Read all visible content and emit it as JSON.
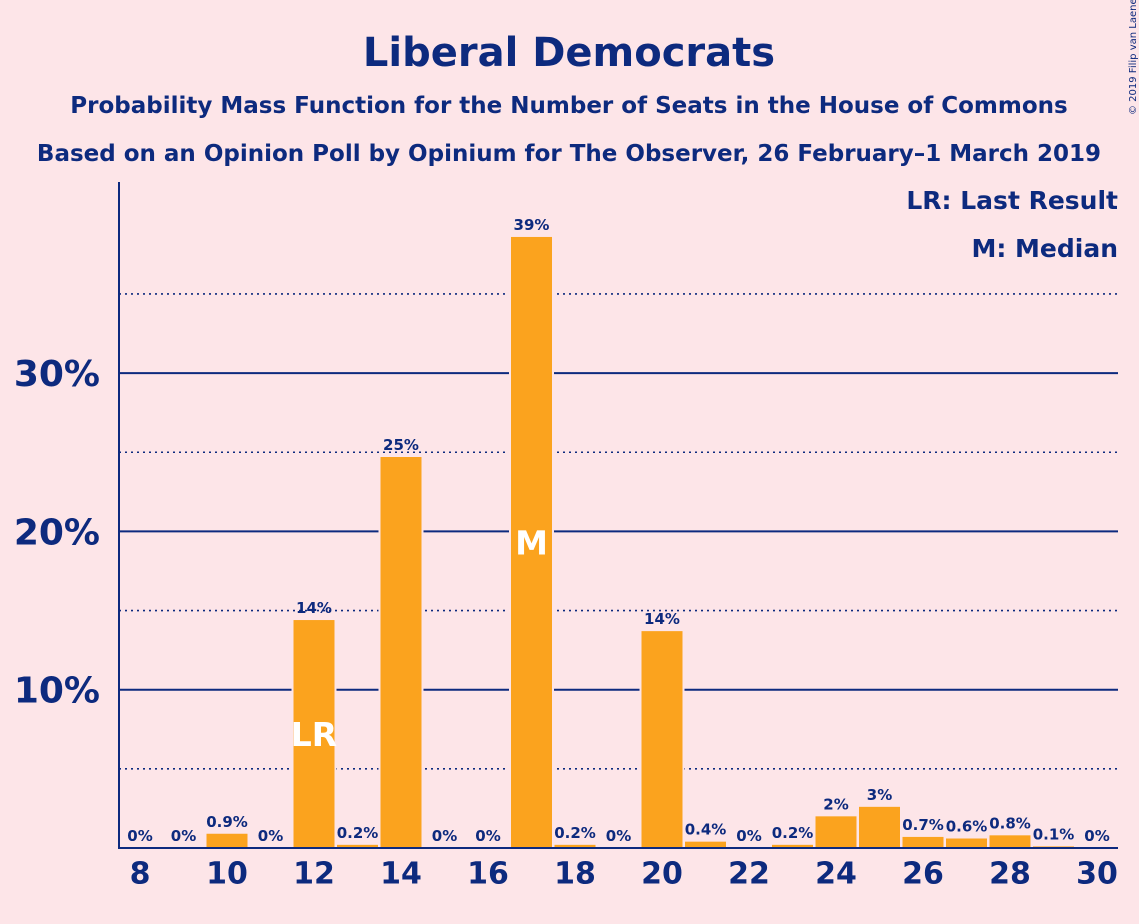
{
  "chart_data": {
    "type": "bar",
    "title": "Liberal Democrats",
    "subtitle_1": "Probability Mass Function for the Number of Seats in the House of Commons",
    "subtitle_2": "Based on an Opinion Poll by Opinium for The Observer, 26 February–1 March 2019",
    "copyright": "© 2019 Filip van Laenen",
    "legend": [
      "LR: Last Result",
      "M: Median"
    ],
    "x": [
      8,
      9,
      10,
      11,
      12,
      13,
      14,
      15,
      16,
      17,
      18,
      19,
      20,
      21,
      22,
      23,
      24,
      25,
      26,
      27,
      28,
      29,
      30
    ],
    "values": [
      0,
      0,
      0.9,
      0,
      14.4,
      0.2,
      24.7,
      0,
      0,
      38.6,
      0.2,
      0,
      13.7,
      0.4,
      0,
      0.2,
      2.0,
      2.6,
      0.7,
      0.6,
      0.8,
      0.1,
      0
    ],
    "data_labels": [
      "0%",
      "0%",
      "0.9%",
      "0%",
      "14%",
      "0.2%",
      "25%",
      "0%",
      "0%",
      "39%",
      "0.2%",
      "0%",
      "14%",
      "0.4%",
      "0%",
      "0.2%",
      "2%",
      "3%",
      "0.7%",
      "0.6%",
      "0.8%",
      "0.1%",
      "0%"
    ],
    "x_tick_labels": [
      "8",
      "10",
      "12",
      "14",
      "16",
      "18",
      "20",
      "22",
      "24",
      "26",
      "28",
      "30"
    ],
    "x_ticks": [
      8,
      10,
      12,
      14,
      16,
      18,
      20,
      22,
      24,
      26,
      28,
      30
    ],
    "y_tick_labels": [
      "10%",
      "20%",
      "30%"
    ],
    "y_ticks": [
      10,
      20,
      30
    ],
    "y_minor_ticks": [
      5,
      15,
      25,
      35
    ],
    "ylim": [
      0,
      42
    ],
    "last_result": {
      "seat": 12,
      "label": "LR"
    },
    "median": {
      "seat": 17,
      "label": "M"
    },
    "bar_color": "#fba31e",
    "text_color": "#0d2a7e",
    "background_color": "#fde5e8"
  }
}
